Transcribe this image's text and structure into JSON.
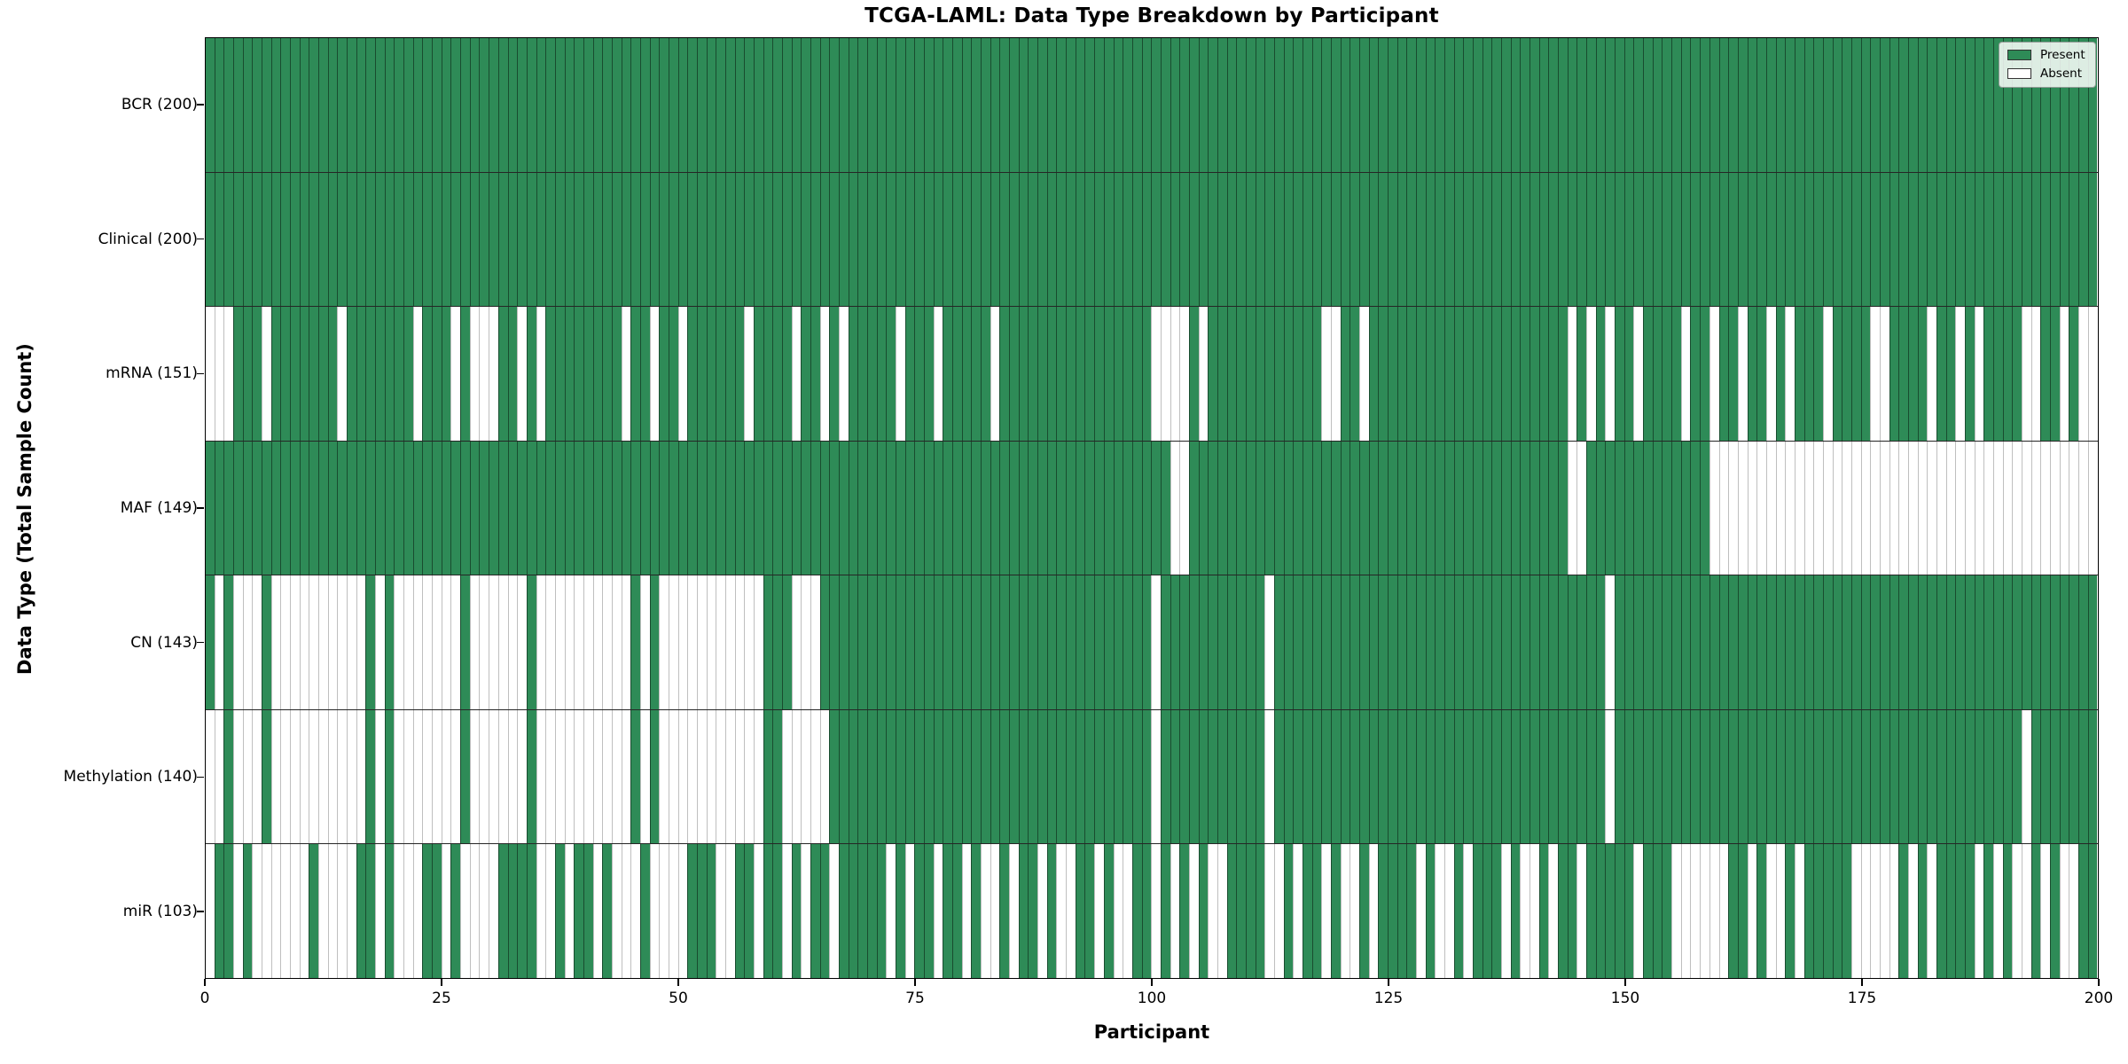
{
  "title": "TCGA-LAML: Data Type Breakdown by Participant",
  "axes": {
    "xlabel": "Participant",
    "ylabel": "Data Type (Total Sample Count)"
  },
  "legend": {
    "items": [
      {
        "label": "Present",
        "color": "#2e8b57"
      },
      {
        "label": "Absent",
        "color": "#ffffff"
      }
    ]
  },
  "colors": {
    "present": "#2e8b57",
    "absent": "#ffffff",
    "bar_edge": "rgba(0,0,0,0.45)",
    "spine": "#000000"
  },
  "chart_data": {
    "type": "heatmap",
    "title": "TCGA-LAML: Data Type Breakdown by Participant",
    "xlabel": "Participant",
    "ylabel": "Data Type (Total Sample Count)",
    "x_range": [
      0,
      200
    ],
    "x_ticks": [
      0,
      25,
      50,
      75,
      100,
      125,
      150,
      175,
      200
    ],
    "n_participants": 200,
    "grid": false,
    "legend_position": "upper right",
    "value_encoding": {
      "1": "Present",
      "0": "Absent"
    },
    "rows": [
      {
        "data_type": "BCR",
        "label": "BCR (200)",
        "total": 200,
        "pattern": "11111111111111111111111111111111111111111111111111111111111111111111111111111111111111111111111111111111111111111111111111111111111111111111111111111111111111111111111111111111111111111111111111111111"
      },
      {
        "data_type": "Clinical",
        "label": "Clinical (200)",
        "total": 200,
        "pattern": "11111111111111111111111111111111111111111111111111111111111111111111111111111111111111111111111111111111111111111111111111111111111111111111111111111111111111111111111111111111111111111111111111111111"
      },
      {
        "data_type": "mRNA",
        "label": "mRNA (151)",
        "total": 151,
        "pattern": "00011101111111011111110111010001101011111111011011011111101111011010111110111011111011111111111111110000101111111111110011011111111111111111111101010110111101101101101011101111001111011010111100110100 11"
      },
      {
        "data_type": "MAF",
        "label": "MAF (149)",
        "total": 149,
        "pattern": "11111111111111111111111111111111111111111111111111111111111111111111111111111111111111111111111111111100111111111111111111111111111111111111111100111111111111100000000000000000000000000000000000000000"
      },
      {
        "data_type": "CN",
        "label": "CN (143)",
        "total": 143,
        "pattern": "10100010000000000101000000010000001000000000010100000000000111000111111111111111111111111111111111110111111111110111111111111111111111111111111111110111111111111111111111111111111111111111111111111111 "
      },
      {
        "data_type": "Methylation",
        "label": "Methylation (140)",
        "total": 140,
        "pattern": "00100010000000000101000000010000001000000000010100000000000110000011111111111111111111111111111111110111111111110111111111111111111111111111111111110111111111111111111111111111111111111111111101111111 "
      },
      {
        "data_type": "miR",
        "label": "miR (103)",
        "total": 103,
        "pattern": "01101000000100001101000110100001111001011010001000011100110110101101111101011011010010110100110100110101010011110010110100101111010010111010010110111110111000000110100101111100000101011110101001010011"
      }
    ]
  }
}
